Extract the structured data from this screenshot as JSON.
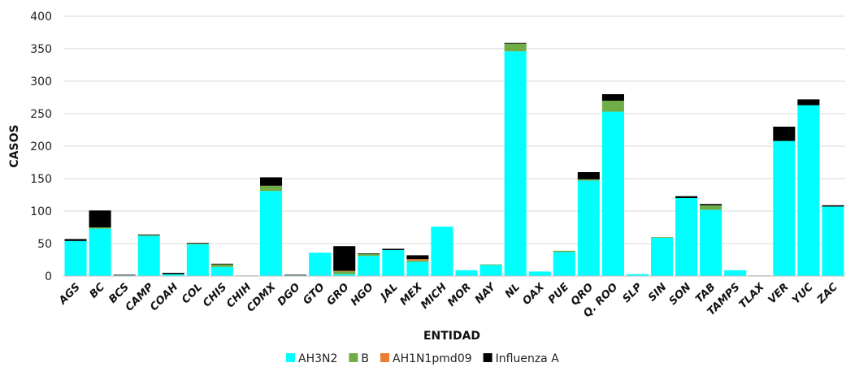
{
  "chart_data": {
    "type": "bar",
    "stacked": true,
    "title": "",
    "xlabel": "ENTIDAD",
    "ylabel": "CASOS",
    "ylim": [
      0,
      400
    ],
    "yticks": [
      0,
      50,
      100,
      150,
      200,
      250,
      300,
      350,
      400
    ],
    "grid": true,
    "legend_position": "bottom",
    "categories": [
      "AGS",
      "BC",
      "BCS",
      "CAMP",
      "COAH",
      "COL",
      "CHIS",
      "CHIH",
      "CDMX",
      "DGO",
      "GTO",
      "GRO",
      "HGO",
      "JAL",
      "MEX",
      "MICH",
      "MOR",
      "NAY",
      "NL",
      "OAX",
      "PUE",
      "QRO",
      "Q. ROO",
      "SLP",
      "SIN",
      "SON",
      "TAB",
      "TAMPS",
      "TLAX",
      "VER",
      "YUC",
      "ZAC"
    ],
    "series": [
      {
        "name": "AH3N2",
        "color": "#00FFFF",
        "values": [
          54,
          73,
          1,
          62,
          3,
          49,
          14,
          0,
          131,
          1,
          36,
          3,
          31,
          40,
          22,
          76,
          9,
          17,
          346,
          7,
          37,
          147,
          253,
          3,
          59,
          120,
          102,
          9,
          0,
          208,
          263,
          107
        ]
      },
      {
        "name": "B",
        "color": "#70AD47",
        "values": [
          0,
          2,
          0,
          1,
          0,
          1,
          4,
          0,
          8,
          0,
          0,
          4,
          3,
          0,
          2,
          0,
          0,
          1,
          12,
          0,
          2,
          2,
          17,
          0,
          1,
          0,
          7,
          0,
          0,
          0,
          0,
          0
        ]
      },
      {
        "name": "AH1N1pmd09",
        "color": "#ED7D31",
        "values": [
          0,
          0,
          0,
          0,
          0,
          0,
          0,
          0,
          0,
          0,
          0,
          1,
          0,
          0,
          2,
          0,
          0,
          0,
          0,
          0,
          0,
          0,
          0,
          0,
          0,
          0,
          0,
          0,
          0,
          0,
          0,
          0
        ]
      },
      {
        "name": "Influenza A",
        "color": "#000000",
        "values": [
          3,
          26,
          1,
          1,
          2,
          1,
          1,
          0,
          13,
          1,
          0,
          38,
          1,
          2,
          6,
          0,
          0,
          0,
          1,
          0,
          0,
          11,
          10,
          0,
          0,
          3,
          2,
          0,
          0,
          22,
          9,
          2
        ]
      }
    ]
  }
}
